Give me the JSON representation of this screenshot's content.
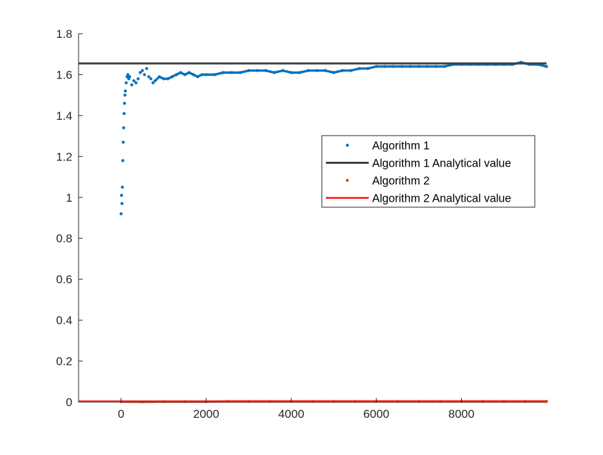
{
  "chart_data": {
    "type": "scatter",
    "xlim": [
      -1000,
      10000
    ],
    "ylim": [
      0,
      1.8
    ],
    "xticks": [
      0,
      2000,
      4000,
      6000,
      8000
    ],
    "yticks": [
      0,
      0.2,
      0.4,
      0.6,
      0.8,
      1,
      1.2,
      1.4,
      1.6,
      1.8
    ],
    "xtick_labels": [
      "0",
      "2000",
      "4000",
      "6000",
      "8000"
    ],
    "ytick_labels": [
      "0",
      "0.2",
      "0.4",
      "0.6",
      "0.8",
      "1",
      "1.2",
      "1.4",
      "1.6",
      "1.8"
    ],
    "grid": false,
    "legend_position": "right-center",
    "series": [
      {
        "name": "Algorithm 1",
        "kind": "points",
        "color": "#0072BD",
        "x": [
          0,
          10,
          20,
          30,
          40,
          50,
          60,
          70,
          80,
          90,
          100,
          120,
          140,
          160,
          180,
          200,
          250,
          300,
          350,
          400,
          450,
          500,
          550,
          600,
          650,
          700,
          750,
          800,
          900,
          1000,
          1100,
          1200,
          1300,
          1400,
          1500,
          1600,
          1700,
          1800,
          1900,
          2000,
          2200,
          2400,
          2600,
          2800,
          3000,
          3200,
          3400,
          3600,
          3800,
          4000,
          4200,
          4400,
          4600,
          4800,
          5000,
          5200,
          5400,
          5600,
          5800,
          6000,
          6200,
          6400,
          6600,
          6800,
          7000,
          7200,
          7400,
          7600,
          7800,
          8000,
          8200,
          8400,
          8600,
          8800,
          9000,
          9200,
          9400,
          9600,
          9800,
          10000
        ],
        "y": [
          0.92,
          1.01,
          0.97,
          1.05,
          1.18,
          1.27,
          1.34,
          1.41,
          1.46,
          1.5,
          1.52,
          1.56,
          1.59,
          1.6,
          1.58,
          1.59,
          1.55,
          1.57,
          1.56,
          1.58,
          1.61,
          1.62,
          1.6,
          1.63,
          1.59,
          1.58,
          1.56,
          1.57,
          1.59,
          1.58,
          1.58,
          1.59,
          1.6,
          1.61,
          1.6,
          1.61,
          1.6,
          1.59,
          1.6,
          1.6,
          1.6,
          1.61,
          1.61,
          1.61,
          1.62,
          1.62,
          1.62,
          1.61,
          1.62,
          1.61,
          1.61,
          1.62,
          1.62,
          1.62,
          1.61,
          1.62,
          1.62,
          1.63,
          1.63,
          1.64,
          1.64,
          1.64,
          1.64,
          1.64,
          1.64,
          1.64,
          1.64,
          1.64,
          1.65,
          1.65,
          1.65,
          1.65,
          1.65,
          1.65,
          1.65,
          1.65,
          1.66,
          1.65,
          1.65,
          1.64
        ]
      },
      {
        "name": "Algorithm 1 Analytical value",
        "kind": "line",
        "color": "#404040",
        "y_constant": 1.655
      },
      {
        "name": "Algorithm 2",
        "kind": "points",
        "color": "#D95319",
        "x": [
          0,
          500,
          1000,
          1500,
          2000,
          2500,
          3000,
          3500,
          4000,
          4500,
          5000,
          5500,
          6000,
          6500,
          7000,
          7500,
          8000,
          8500,
          9000,
          9500,
          10000
        ],
        "y": [
          0.002,
          0.001,
          0.002,
          0.002,
          0.002,
          0.003,
          0.003,
          0.003,
          0.003,
          0.003,
          0.003,
          0.003,
          0.003,
          0.003,
          0.003,
          0.003,
          0.003,
          0.003,
          0.003,
          0.003,
          0.003
        ]
      },
      {
        "name": "Algorithm 2 Analytical value",
        "kind": "line",
        "color": "#FF3030",
        "y_constant": 0.003
      }
    ]
  }
}
